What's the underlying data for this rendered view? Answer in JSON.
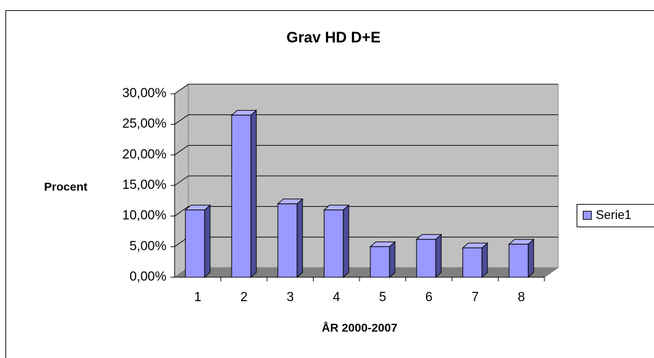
{
  "chart_data": {
    "type": "bar",
    "title": "Grav HD D+E",
    "x_label": "ÅR 2000-2007",
    "y_label": "Procent",
    "categories": [
      "1",
      "2",
      "3",
      "4",
      "5",
      "6",
      "7",
      "8"
    ],
    "series": [
      {
        "name": "Serie1",
        "color": "#9999ff",
        "values": [
          11,
          26.5,
          12,
          11,
          5,
          6.2,
          4.8,
          5.4
        ]
      }
    ],
    "ylim": [
      0,
      30
    ],
    "yticks": [
      {
        "value": 0,
        "label": "0,00%"
      },
      {
        "value": 5,
        "label": "5,00%"
      },
      {
        "value": 10,
        "label": "10,00%"
      },
      {
        "value": 15,
        "label": "15,00%"
      },
      {
        "value": 20,
        "label": "20,00%"
      },
      {
        "value": 25,
        "label": "25,00%"
      },
      {
        "value": 30,
        "label": "30,00%"
      }
    ],
    "grid": true,
    "legend": "right"
  }
}
